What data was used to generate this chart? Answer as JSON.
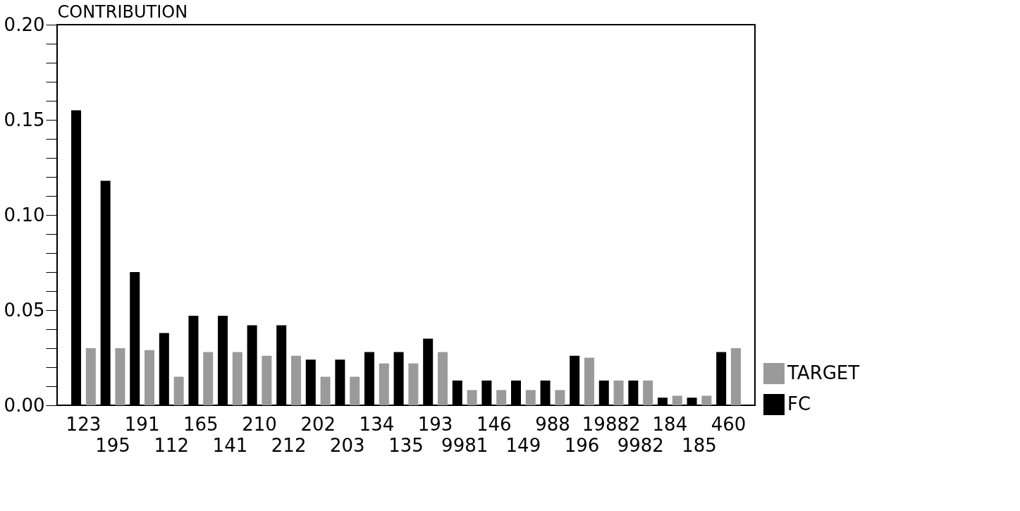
{
  "chart_data": {
    "type": "bar",
    "ylabel": "CONTRIBUTION",
    "categories": [
      "123",
      "195",
      "191",
      "112",
      "165",
      "141",
      "210",
      "212",
      "202",
      "203",
      "134",
      "135",
      "193",
      "9981",
      "146",
      "149",
      "988",
      "196",
      "19882",
      "9982",
      "184",
      "185",
      "460"
    ],
    "series": [
      {
        "name": "FC",
        "color": "#000000",
        "values": [
          0.155,
          0.118,
          0.07,
          0.038,
          0.047,
          0.047,
          0.042,
          0.042,
          0.024,
          0.024,
          0.028,
          0.028,
          0.035,
          0.013,
          0.013,
          0.013,
          0.013,
          0.026,
          0.013,
          0.013,
          0.004,
          0.004,
          0.028
        ]
      },
      {
        "name": "TARGET",
        "color": "#9a9a9a",
        "values": [
          0.03,
          0.03,
          0.029,
          0.015,
          0.028,
          0.028,
          0.026,
          0.026,
          0.015,
          0.015,
          0.022,
          0.022,
          0.028,
          0.008,
          0.008,
          0.008,
          0.008,
          0.025,
          0.013,
          0.013,
          0.005,
          0.005,
          0.03
        ]
      }
    ],
    "ylim": [
      0,
      0.2
    ],
    "yticks": [
      {
        "value": 0,
        "label": "0.00"
      },
      {
        "value": 0.01,
        "label": null
      },
      {
        "value": 0.02,
        "label": null
      },
      {
        "value": 0.03,
        "label": null
      },
      {
        "value": 0.04,
        "label": null
      },
      {
        "value": 0.05,
        "label": "0.05"
      },
      {
        "value": 0.06,
        "label": null
      },
      {
        "value": 0.07,
        "label": null
      },
      {
        "value": 0.08,
        "label": null
      },
      {
        "value": 0.09,
        "label": null
      },
      {
        "value": 0.1,
        "label": "0.10"
      },
      {
        "value": 0.11,
        "label": null
      },
      {
        "value": 0.12,
        "label": null
      },
      {
        "value": 0.13,
        "label": null
      },
      {
        "value": 0.14,
        "label": null
      },
      {
        "value": 0.15,
        "label": "0.15"
      },
      {
        "value": 0.16,
        "label": null
      },
      {
        "value": 0.17,
        "label": null
      },
      {
        "value": 0.18,
        "label": null
      },
      {
        "value": 0.19,
        "label": null
      },
      {
        "value": 0.2,
        "label": "0.20"
      }
    ],
    "grid": false,
    "legend": "bottom right"
  }
}
